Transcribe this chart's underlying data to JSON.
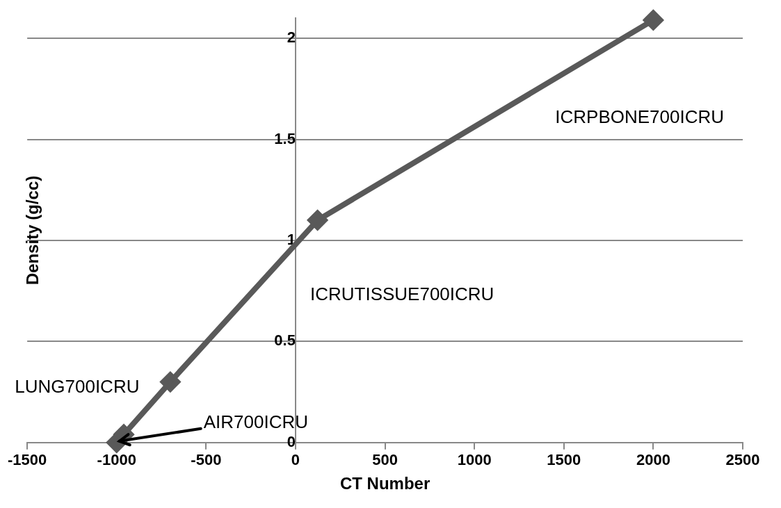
{
  "chart_data": {
    "type": "line",
    "xlabel": "CT Number",
    "ylabel": "Density (g/cc)",
    "x": [
      -1000,
      -960,
      -700,
      123,
      2000
    ],
    "series": [
      {
        "color": "#595959",
        "values": [
          0,
          0.04,
          0.3,
          1.1,
          2.09
        ]
      }
    ],
    "xlim": [
      -1500,
      2500
    ],
    "xticks": [
      -1500,
      -1000,
      -500,
      0,
      500,
      1000,
      1500,
      2000,
      2500
    ],
    "ylim": [
      0,
      2.1
    ],
    "yticks": [
      0,
      0.5,
      1,
      1.5,
      2
    ],
    "grid": "y",
    "legend": false,
    "marker": "diamond",
    "line_style": "solid",
    "annotations": [
      "ICRPBONE700ICRU",
      "ICRUTISSUE700ICRU",
      "LUNG700ICRU",
      {
        "text": "AIR700ICRU",
        "x": -1000,
        "y": 0
      }
    ]
  }
}
